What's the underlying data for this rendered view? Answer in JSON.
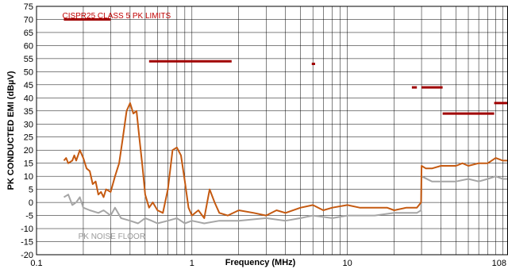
{
  "chart_data": {
    "type": "line",
    "xlabel": "Frequency (MHz)",
    "ylabel": "PK CONDUCTED EMI (dBµV)",
    "x_scale": "log",
    "xlim": [
      0.1,
      108
    ],
    "ylim": [
      -20,
      75
    ],
    "x_ticks": [
      0.1,
      1,
      10,
      108
    ],
    "x_tick_labels": [
      "0.1",
      "1",
      "10",
      "108"
    ],
    "y_ticks": [
      -20,
      -15,
      -10,
      -5,
      0,
      5,
      10,
      15,
      20,
      25,
      30,
      35,
      40,
      45,
      50,
      55,
      60,
      65,
      70,
      75
    ],
    "grid": true,
    "annotations": [
      {
        "text": "CISPR25 CLASS 5 PK LIMITS",
        "color": "#c00000",
        "x": 0.15,
        "y": 71
      },
      {
        "text": "PK NOISE FLOOR",
        "color": "#9a9a9a",
        "x": 0.19,
        "y": -13
      }
    ],
    "limit_segments": {
      "color": "#a00000",
      "segments": [
        {
          "x": [
            0.15,
            0.3
          ],
          "y": 70
        },
        {
          "x": [
            0.53,
            1.8
          ],
          "y": 54
        },
        {
          "x": [
            5.9,
            6.2
          ],
          "y": 53
        },
        {
          "x": [
            26,
            28
          ],
          "y": 44
        },
        {
          "x": [
            30,
            41
          ],
          "y": 44
        },
        {
          "x": [
            41,
            88
          ],
          "y": 34
        },
        {
          "x": [
            88,
            108
          ],
          "y": 38
        }
      ]
    },
    "series": [
      {
        "color": "#c55a11",
        "points": [
          [
            0.15,
            16
          ],
          [
            0.155,
            17
          ],
          [
            0.16,
            15
          ],
          [
            0.17,
            16
          ],
          [
            0.175,
            18
          ],
          [
            0.18,
            16
          ],
          [
            0.19,
            20
          ],
          [
            0.2,
            17
          ],
          [
            0.21,
            13
          ],
          [
            0.22,
            12
          ],
          [
            0.23,
            7
          ],
          [
            0.24,
            8
          ],
          [
            0.25,
            3
          ],
          [
            0.26,
            4
          ],
          [
            0.27,
            2
          ],
          [
            0.28,
            5
          ],
          [
            0.3,
            4
          ],
          [
            0.32,
            10
          ],
          [
            0.34,
            15
          ],
          [
            0.36,
            25
          ],
          [
            0.38,
            35
          ],
          [
            0.4,
            38
          ],
          [
            0.42,
            34
          ],
          [
            0.44,
            35
          ],
          [
            0.46,
            24
          ],
          [
            0.48,
            14
          ],
          [
            0.5,
            3
          ],
          [
            0.53,
            -2
          ],
          [
            0.56,
            0
          ],
          [
            0.6,
            -3
          ],
          [
            0.65,
            -4
          ],
          [
            0.7,
            5
          ],
          [
            0.75,
            20
          ],
          [
            0.8,
            21
          ],
          [
            0.85,
            18
          ],
          [
            0.9,
            8
          ],
          [
            0.95,
            -2
          ],
          [
            1.0,
            -5
          ],
          [
            1.1,
            -3
          ],
          [
            1.2,
            -6
          ],
          [
            1.3,
            5
          ],
          [
            1.4,
            0
          ],
          [
            1.5,
            -4
          ],
          [
            1.7,
            -5
          ],
          [
            2.0,
            -3
          ],
          [
            2.5,
            -4
          ],
          [
            3,
            -5
          ],
          [
            3.5,
            -3
          ],
          [
            4,
            -4
          ],
          [
            5,
            -2
          ],
          [
            6,
            -1
          ],
          [
            7,
            -3
          ],
          [
            8,
            -2
          ],
          [
            10,
            -1
          ],
          [
            12,
            -2
          ],
          [
            15,
            -2
          ],
          [
            18,
            -2
          ],
          [
            20,
            -3
          ],
          [
            24,
            -2
          ],
          [
            26,
            -2
          ],
          [
            28,
            -2
          ],
          [
            29.8,
            0
          ],
          [
            30,
            14
          ],
          [
            32,
            13
          ],
          [
            35,
            13
          ],
          [
            40,
            14
          ],
          [
            45,
            14
          ],
          [
            50,
            14
          ],
          [
            55,
            15
          ],
          [
            60,
            14
          ],
          [
            70,
            15
          ],
          [
            80,
            15
          ],
          [
            90,
            17
          ],
          [
            100,
            16
          ],
          [
            108,
            16
          ]
        ]
      },
      {
        "color": "#a6a6a6",
        "points": [
          [
            0.15,
            2
          ],
          [
            0.16,
            3
          ],
          [
            0.17,
            -1
          ],
          [
            0.18,
            0
          ],
          [
            0.19,
            2
          ],
          [
            0.2,
            -2
          ],
          [
            0.22,
            -3
          ],
          [
            0.25,
            -4
          ],
          [
            0.27,
            -3
          ],
          [
            0.3,
            -5
          ],
          [
            0.32,
            -2
          ],
          [
            0.35,
            -6
          ],
          [
            0.4,
            -7
          ],
          [
            0.45,
            -8
          ],
          [
            0.5,
            -6
          ],
          [
            0.55,
            -7
          ],
          [
            0.6,
            -8
          ],
          [
            0.7,
            -7
          ],
          [
            0.8,
            -6
          ],
          [
            0.9,
            -8
          ],
          [
            1.0,
            -7
          ],
          [
            1.2,
            -8
          ],
          [
            1.5,
            -7
          ],
          [
            2,
            -7
          ],
          [
            3,
            -6
          ],
          [
            4,
            -7
          ],
          [
            5,
            -6
          ],
          [
            6,
            -5
          ],
          [
            8,
            -6
          ],
          [
            10,
            -5
          ],
          [
            15,
            -5
          ],
          [
            20,
            -4
          ],
          [
            25,
            -4
          ],
          [
            28,
            -4
          ],
          [
            29.8,
            -3
          ],
          [
            30,
            10
          ],
          [
            35,
            8
          ],
          [
            40,
            8
          ],
          [
            50,
            8
          ],
          [
            60,
            9
          ],
          [
            70,
            8
          ],
          [
            80,
            9
          ],
          [
            90,
            10
          ],
          [
            100,
            9
          ],
          [
            108,
            9
          ]
        ]
      }
    ]
  }
}
